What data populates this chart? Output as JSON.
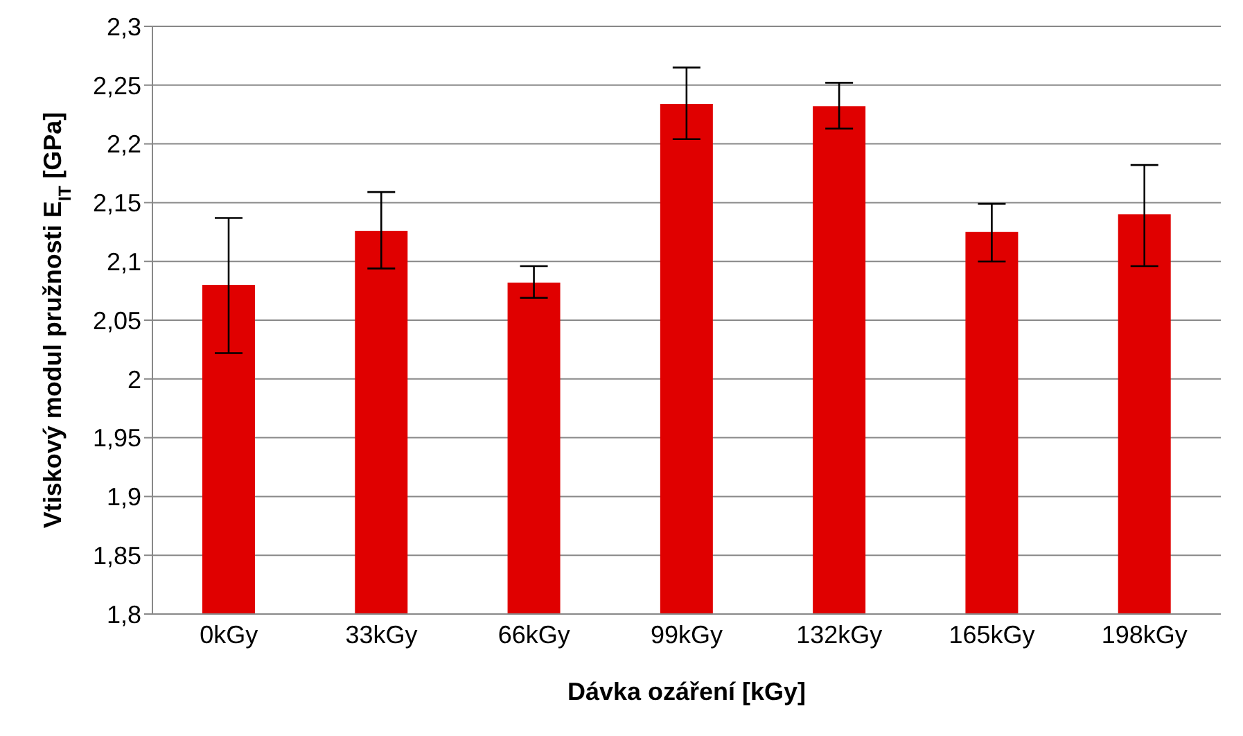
{
  "chart_data": {
    "type": "bar",
    "xlabel": "Dávka ozáření [kGy]",
    "ylabel": "Vtiskový modul pružnosti E$_{IT}$ [GPa]",
    "categories": [
      "0kGy",
      "33kGy",
      "66kGy",
      "99kGy",
      "132kGy",
      "165kGy",
      "198kGy"
    ],
    "values": [
      2.08,
      2.126,
      2.082,
      2.234,
      2.232,
      2.125,
      2.14
    ],
    "errors": [
      [
        2.022,
        2.137
      ],
      [
        2.094,
        2.159
      ],
      [
        2.069,
        2.096
      ],
      [
        2.204,
        2.265
      ],
      [
        2.213,
        2.252
      ],
      [
        2.1,
        2.149
      ],
      [
        2.096,
        2.182
      ]
    ],
    "color": "#e00000",
    "ylim": [
      1.8,
      2.3
    ],
    "yticks": [
      {
        "value": 1.8,
        "label": "1,8"
      },
      {
        "value": 1.85,
        "label": "1,85"
      },
      {
        "value": 1.9,
        "label": "1,9"
      },
      {
        "value": 1.95,
        "label": "1,95"
      },
      {
        "value": 2,
        "label": "2"
      },
      {
        "value": 2.05,
        "label": "2,05"
      },
      {
        "value": 2.1,
        "label": "2,1"
      },
      {
        "value": 2.15,
        "label": "2,15"
      },
      {
        "value": 2.2,
        "label": "2,2"
      },
      {
        "value": 2.25,
        "label": "2,25"
      },
      {
        "value": 2.3,
        "label": "2,3"
      }
    ],
    "grid": "y"
  }
}
